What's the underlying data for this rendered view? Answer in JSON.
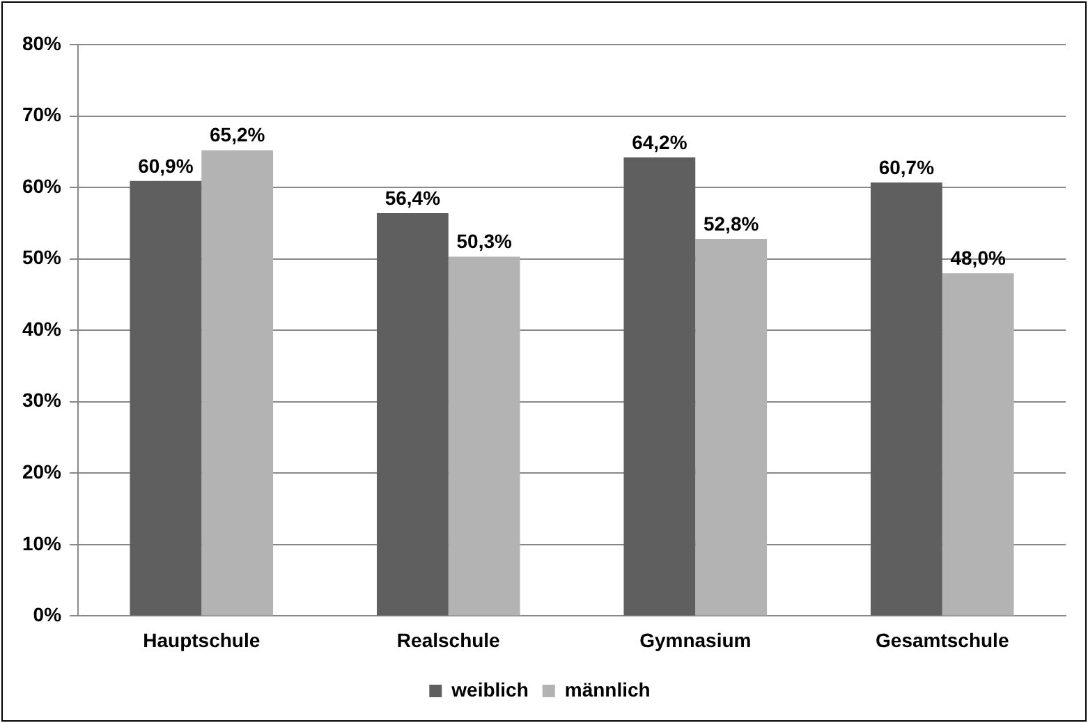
{
  "chart_data": {
    "type": "bar",
    "categories": [
      "Hauptschule",
      "Realschule",
      "Gymnasium",
      "Gesamtschule"
    ],
    "series": [
      {
        "name": "weiblich",
        "color": "#5f5f5f",
        "values": [
          60.9,
          56.4,
          64.2,
          60.7
        ],
        "value_labels": [
          "60,9%",
          "56,4%",
          "64,2%",
          "60,7%"
        ]
      },
      {
        "name": "männlich",
        "color": "#b3b3b3",
        "values": [
          65.2,
          50.3,
          52.8,
          48.0
        ],
        "value_labels": [
          "65,2%",
          "50,3%",
          "52,8%",
          "48,0%"
        ]
      }
    ],
    "ylim": [
      0,
      80
    ],
    "yticks": [
      {
        "value": 0,
        "label": "0%"
      },
      {
        "value": 10,
        "label": "10%"
      },
      {
        "value": 20,
        "label": "20%"
      },
      {
        "value": 30,
        "label": "30%"
      },
      {
        "value": 40,
        "label": "40%"
      },
      {
        "value": 50,
        "label": "50%"
      },
      {
        "value": 60,
        "label": "60%"
      },
      {
        "value": 70,
        "label": "70%"
      },
      {
        "value": 80,
        "label": "80%"
      }
    ],
    "grid": "y",
    "legend": "bottom"
  }
}
